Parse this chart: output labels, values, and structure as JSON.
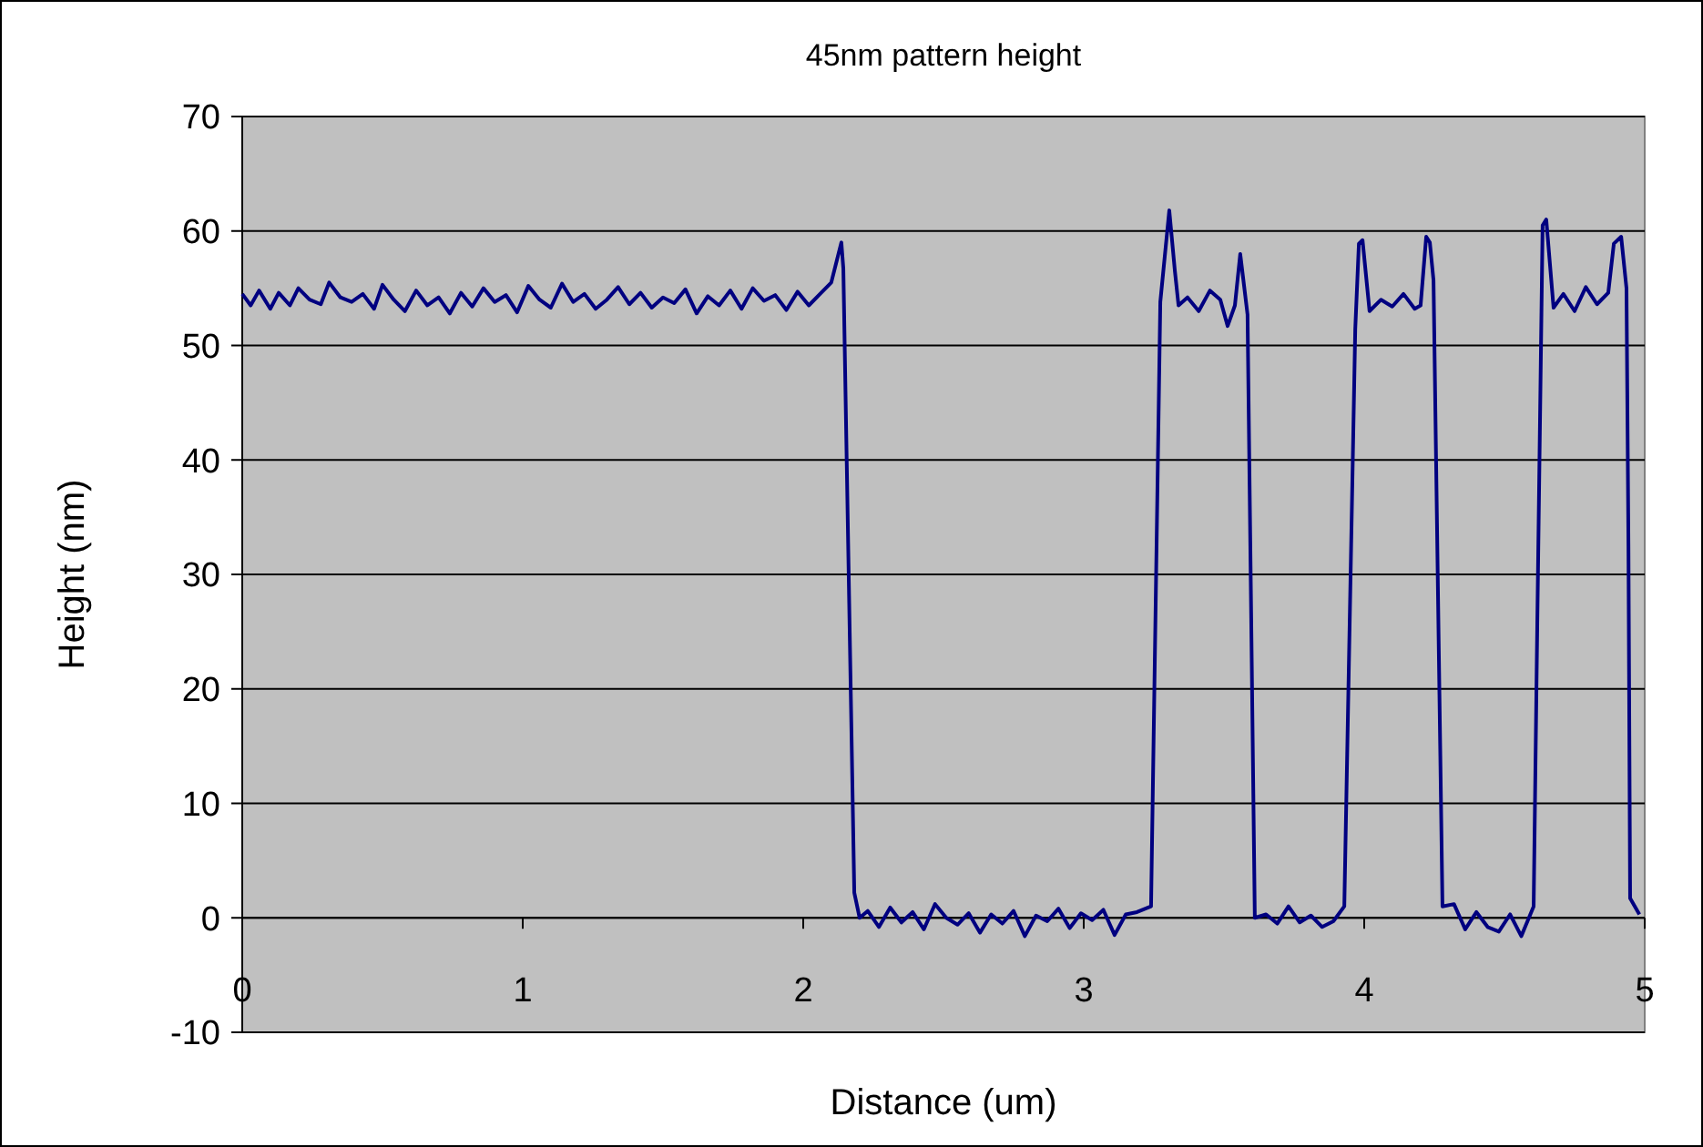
{
  "chart_data": {
    "type": "line",
    "title": "45nm pattern height",
    "xlabel": "Distance (um)",
    "ylabel": "Height (nm)",
    "xlim": [
      0,
      5
    ],
    "xticks": [
      0,
      1,
      2,
      3,
      4,
      5
    ],
    "ylim": [
      -10,
      70
    ],
    "yticks": [
      -10,
      0,
      10,
      20,
      30,
      40,
      50,
      60,
      70
    ],
    "grid": "y",
    "series": [
      {
        "color": "#000080",
        "x": [
          0,
          0.03,
          0.06,
          0.1,
          0.13,
          0.17,
          0.2,
          0.24,
          0.28,
          0.31,
          0.35,
          0.39,
          0.43,
          0.47,
          0.5,
          0.54,
          0.58,
          0.62,
          0.66,
          0.7,
          0.74,
          0.78,
          0.82,
          0.86,
          0.9,
          0.94,
          0.98,
          1.02,
          1.06,
          1.1,
          1.14,
          1.18,
          1.22,
          1.26,
          1.3,
          1.34,
          1.38,
          1.42,
          1.46,
          1.5,
          1.54,
          1.58,
          1.62,
          1.66,
          1.7,
          1.74,
          1.78,
          1.82,
          1.86,
          1.9,
          1.94,
          1.98,
          2.02,
          2.06,
          2.1,
          2.136,
          2.143,
          2.182,
          2.201,
          2.23,
          2.27,
          2.31,
          2.35,
          2.39,
          2.43,
          2.47,
          2.51,
          2.55,
          2.59,
          2.63,
          2.67,
          2.71,
          2.75,
          2.79,
          2.83,
          2.87,
          2.91,
          2.95,
          2.99,
          3.03,
          3.07,
          3.11,
          3.15,
          3.19,
          3.24,
          3.273,
          3.305,
          3.325,
          3.338,
          3.37,
          3.41,
          3.45,
          3.487,
          3.513,
          3.539,
          3.558,
          3.584,
          3.61,
          3.65,
          3.69,
          3.73,
          3.77,
          3.81,
          3.85,
          3.89,
          3.929,
          3.968,
          3.981,
          3.994,
          4.019,
          4.06,
          4.1,
          4.14,
          4.18,
          4.201,
          4.221,
          4.234,
          4.247,
          4.279,
          4.32,
          4.36,
          4.4,
          4.44,
          4.48,
          4.52,
          4.56,
          4.604,
          4.617,
          4.636,
          4.649,
          4.675,
          4.71,
          4.75,
          4.79,
          4.83,
          4.87,
          4.89,
          4.916,
          4.935,
          4.942,
          4.948,
          4.981
        ],
        "values": [
          54.5,
          53.5,
          54.8,
          53.2,
          54.6,
          53.5,
          55,
          54,
          53.6,
          55.5,
          54.2,
          53.8,
          54.5,
          53.2,
          55.3,
          54,
          53,
          54.8,
          53.5,
          54.2,
          52.8,
          54.6,
          53.4,
          55,
          53.8,
          54.4,
          52.9,
          55.2,
          54,
          53.3,
          55.4,
          53.8,
          54.5,
          53.2,
          54,
          55.1,
          53.6,
          54.6,
          53.3,
          54.2,
          53.7,
          54.9,
          52.8,
          54.3,
          53.5,
          54.8,
          53.2,
          55,
          53.9,
          54.4,
          53.1,
          54.7,
          53.5,
          54.5,
          55.5,
          59,
          56.7,
          2.2,
          0,
          0.6,
          -0.8,
          0.9,
          -0.4,
          0.5,
          -1,
          1.2,
          0,
          -0.6,
          0.4,
          -1.3,
          0.3,
          -0.5,
          0.6,
          -1.6,
          0.2,
          -0.3,
          0.8,
          -0.9,
          0.4,
          -0.2,
          0.7,
          -1.5,
          0.3,
          0.5,
          1,
          53.8,
          61.8,
          56.5,
          53.5,
          54.2,
          53,
          54.8,
          54,
          51.7,
          53.5,
          58,
          52.7,
          0,
          0.3,
          -0.5,
          1,
          -0.4,
          0.2,
          -0.8,
          -0.3,
          1,
          51.4,
          58.9,
          59.2,
          53,
          54,
          53.4,
          54.5,
          53.2,
          53.5,
          59.5,
          59,
          55.7,
          1,
          1.2,
          -1,
          0.5,
          -0.8,
          -1.2,
          0.3,
          -1.6,
          1,
          25.7,
          60.5,
          61,
          53.3,
          54.5,
          53,
          55.1,
          53.6,
          54.6,
          58.9,
          59.5,
          55,
          32.4,
          1.7,
          0.3
        ]
      }
    ]
  }
}
